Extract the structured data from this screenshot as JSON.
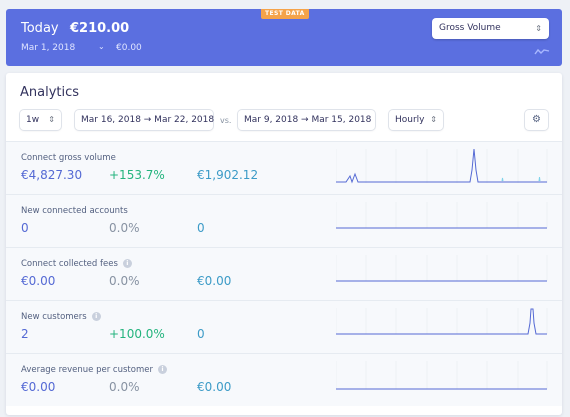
{
  "header": {
    "badge": "TEST DATA",
    "today_label": "Today",
    "today_amount": "€210.00",
    "date": "Mar 1, 2018",
    "chevron": "⌄",
    "compare_amount": "€0.00",
    "select_value": "Gross Volume"
  },
  "analytics": {
    "title": "Analytics",
    "interval": "1w",
    "range_current": "Mar 16, 2018 → Mar 22, 2018",
    "vs_label": "vs.",
    "range_previous": "Mar 9, 2018 → Mar 15, 2018",
    "granularity": "Hourly"
  },
  "metrics": [
    {
      "label": "Connect gross volume",
      "value": "€4,827.30",
      "change": "+153.7%",
      "previous": "€1,902.12",
      "info": false
    },
    {
      "label": "New connected accounts",
      "value": "0",
      "change": "0.0%",
      "previous": "0",
      "info": false
    },
    {
      "label": "Connect collected fees",
      "value": "€0.00",
      "change": "0.0%",
      "previous": "€0.00",
      "info": true
    },
    {
      "label": "New customers",
      "value": "2",
      "change": "+100.0%",
      "previous": "0",
      "info": true
    },
    {
      "label": "Average revenue per customer",
      "value": "€0.00",
      "change": "0.0%",
      "previous": "€0.00",
      "info": true
    }
  ],
  "colors": {
    "header_bg": "#5b6fe0",
    "badge": "#f5a34a",
    "accent": "#5469d4",
    "positive": "#24b47e",
    "previous": "#3c9bc7"
  },
  "icons": {
    "select_arrows": "updown-icon",
    "settings": "gear-icon",
    "info": "info-icon",
    "sparkline": "sparkline-icon"
  }
}
